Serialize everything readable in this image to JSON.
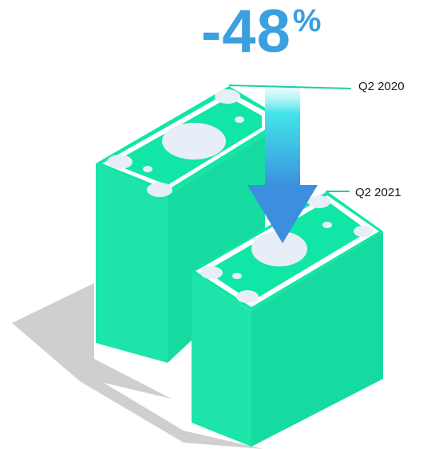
{
  "headline": {
    "value": "-48",
    "unit": "%"
  },
  "periods": [
    {
      "label": "Q2 2020"
    },
    {
      "label": "Q2 2021"
    }
  ],
  "colors": {
    "money": "#12e6a6",
    "money_side": "#0ed49a",
    "money_front": "#19e3a8",
    "bill": "#e8eef8",
    "shadow": "#c8c8c8",
    "arrow": "#3b8fdd",
    "headline": "#3b9fe0"
  }
}
